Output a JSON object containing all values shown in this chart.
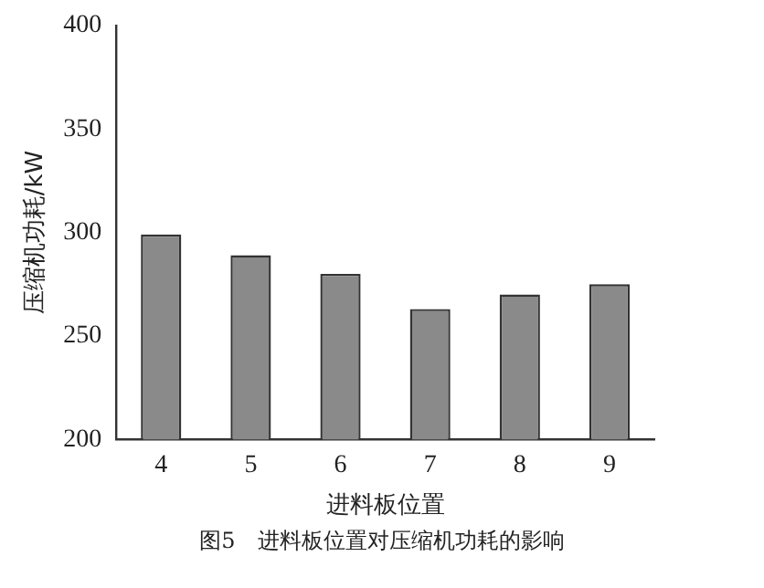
{
  "chart_data": {
    "type": "bar",
    "xlabel": "进料板位置",
    "ylabel": "压缩机功耗/kW",
    "categories": [
      "4",
      "5",
      "6",
      "7",
      "8",
      "9"
    ],
    "series": [
      {
        "color": "#8a8a8a",
        "values": [
          299,
          289,
          280,
          263,
          270,
          275
        ]
      }
    ],
    "ylim": [
      200,
      400
    ],
    "yticks": [
      200,
      250,
      300,
      350,
      400
    ],
    "grid": false,
    "legend": false,
    "annotations": [
      "图5　进料板位置对压缩机功耗的影响"
    ]
  }
}
